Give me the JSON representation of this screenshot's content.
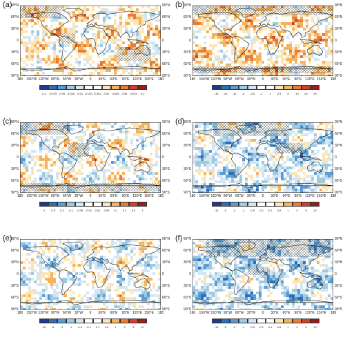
{
  "lat_labels": [
    "90°N",
    "60°N",
    "30°N",
    "0",
    "30°S",
    "60°S",
    "90°S"
  ],
  "lon_labels": [
    "180",
    "150°W",
    "120°W",
    "90°W",
    "60°W",
    "30°W",
    "0",
    "30°E",
    "60°E",
    "90°E",
    "120°E",
    "150°E",
    "180"
  ],
  "palette_div": [
    "#1f3a8a",
    "#2f6db8",
    "#5b9bd5",
    "#9ecae1",
    "#d4e6f3",
    "#ffffff",
    "#ffffff",
    "#fbe6b5",
    "#f4b35e",
    "#ea7b37",
    "#d1402a",
    "#9a1c1c"
  ],
  "palette_warm_b": [
    "#1f3a8a",
    "#2f6db8",
    "#5b9bd5",
    "#9ecae1",
    "#d4e6f3",
    "#ffffff",
    "#ffffff",
    "#fbe6b5",
    "#f4b35e",
    "#ea7b37",
    "#d1402a",
    "#9a1c1c"
  ],
  "panels": [
    {
      "label": "(a)",
      "ticks": [
        "-0.1",
        "-0.075",
        "-0.05",
        "-0.025",
        "-0.01",
        "-0.001",
        "0.001",
        "0.01",
        "0.025",
        "0.05",
        "0.075",
        "0.1"
      ],
      "bias": 0.2,
      "seed": 3,
      "hatch": "ne"
    },
    {
      "label": "(b)",
      "ticks": [
        "-30",
        "-20",
        "-10",
        "-5",
        "-2.5",
        "-1",
        "1",
        "2.5",
        "5",
        "10",
        "20",
        "30"
      ],
      "bias": 0.3,
      "seed": 7,
      "hatch": "polar"
    },
    {
      "label": "(c)",
      "ticks": [
        "-1",
        "-0.5",
        "-0.2",
        "-0.1",
        "-0.05",
        "-0.01",
        "0.01",
        "0.05",
        "0.1",
        "0.2",
        "0.5",
        "1"
      ],
      "bias": 0.0,
      "seed": 11,
      "hatch": "both"
    },
    {
      "label": "(d)",
      "ticks": [
        "-10",
        "-5",
        "-2",
        "-1",
        "-0.5",
        "-0.1",
        "0.1",
        "0.5",
        "1",
        "2",
        "5",
        "10"
      ],
      "bias": -0.3,
      "seed": 19,
      "hatch": "north"
    },
    {
      "label": "(e)",
      "ticks": [
        "-10",
        "-5",
        "-2",
        "-1",
        "-0.5",
        "-0.1",
        "0.1",
        "0.5",
        "1",
        "2",
        "5",
        "10"
      ],
      "bias": -0.1,
      "seed": 23,
      "hatch": "none"
    },
    {
      "label": "(f)",
      "ticks": [
        "-10",
        "-5",
        "-2",
        "-1",
        "-0.5",
        "-0.1",
        "0.1",
        "0.5",
        "1",
        "2",
        "5",
        "10"
      ],
      "bias": -0.4,
      "seed": 29,
      "hatch": "northwide"
    }
  ]
}
